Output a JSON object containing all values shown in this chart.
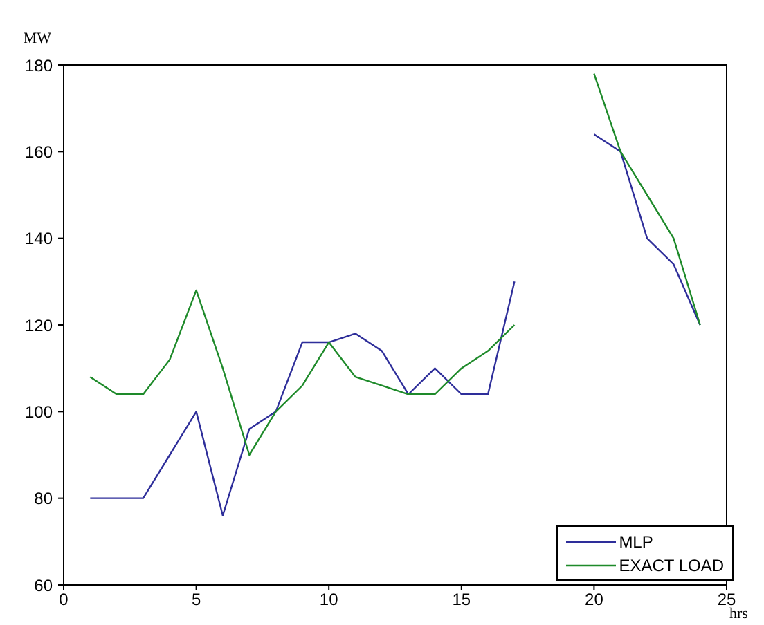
{
  "chart_data": {
    "type": "line",
    "xlabel": "hrs",
    "ylabel": "MW",
    "x": [
      1,
      2,
      3,
      4,
      5,
      6,
      7,
      8,
      9,
      10,
      11,
      12,
      13,
      14,
      15,
      16,
      17,
      18,
      19,
      20,
      21,
      22,
      23,
      24
    ],
    "series": [
      {
        "name": "MLP",
        "color": "#2e2e9a",
        "values": [
          80,
          80,
          80,
          90,
          100,
          76,
          96,
          100,
          116,
          116,
          118,
          114,
          104,
          110,
          104,
          104,
          130,
          null,
          null,
          164,
          160,
          140,
          134,
          120
        ]
      },
      {
        "name": "EXACT LOAD",
        "color": "#1e8a2a",
        "values": [
          108,
          104,
          104,
          112,
          128,
          110,
          90,
          100,
          106,
          116,
          108,
          106,
          104,
          104,
          110,
          114,
          120,
          null,
          null,
          178,
          160,
          150,
          140,
          120
        ]
      }
    ],
    "xlim": [
      0,
      25
    ],
    "xticks": [
      0,
      5,
      10,
      15,
      20,
      25
    ],
    "ylim": [
      60,
      180
    ],
    "yticks": [
      60,
      80,
      100,
      120,
      140,
      160,
      180
    ],
    "grid": false,
    "legend": "bottom right",
    "marker": "none",
    "line_style": "solid"
  }
}
